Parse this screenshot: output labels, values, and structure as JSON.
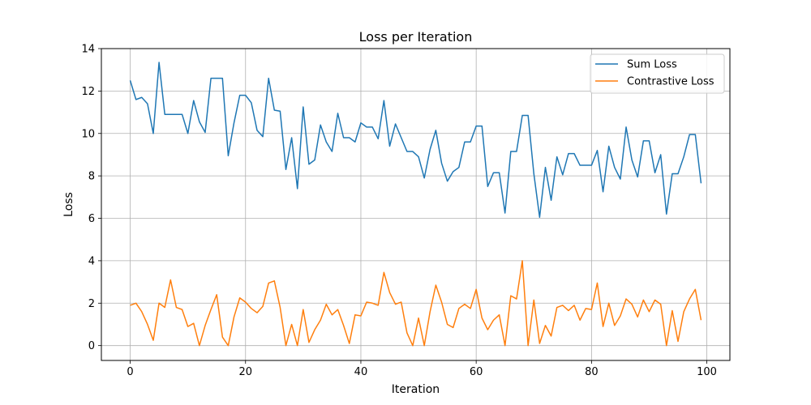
{
  "chart_data": {
    "type": "line",
    "title": "Loss per Iteration",
    "xlabel": "Iteration",
    "ylabel": "Loss",
    "xlim": [
      -5,
      104
    ],
    "ylim": [
      -0.7,
      14
    ],
    "xticks": [
      0,
      20,
      40,
      60,
      80,
      100
    ],
    "yticks": [
      0,
      2,
      4,
      6,
      8,
      10,
      12,
      14
    ],
    "grid": true,
    "legend_position": "top-right",
    "x": [
      0,
      1,
      2,
      3,
      4,
      5,
      6,
      7,
      8,
      9,
      10,
      11,
      12,
      13,
      14,
      15,
      16,
      17,
      18,
      19,
      20,
      21,
      22,
      23,
      24,
      25,
      26,
      27,
      28,
      29,
      30,
      31,
      32,
      33,
      34,
      35,
      36,
      37,
      38,
      39,
      40,
      41,
      42,
      43,
      44,
      45,
      46,
      47,
      48,
      49,
      50,
      51,
      52,
      53,
      54,
      55,
      56,
      57,
      58,
      59,
      60,
      61,
      62,
      63,
      64,
      65,
      66,
      67,
      68,
      69,
      70,
      71,
      72,
      73,
      74,
      75,
      76,
      77,
      78,
      79,
      80,
      81,
      82,
      83,
      84,
      85,
      86,
      87,
      88,
      89,
      90,
      91,
      92,
      93,
      94,
      95,
      96,
      97,
      98,
      99
    ],
    "series": [
      {
        "name": "Sum Loss",
        "color": "#1f77b4",
        "values": [
          12.5,
          11.6,
          11.7,
          11.4,
          10.0,
          13.35,
          10.9,
          10.9,
          10.9,
          10.9,
          10.0,
          11.55,
          10.55,
          10.05,
          12.6,
          12.6,
          12.6,
          8.95,
          10.5,
          11.8,
          11.8,
          11.45,
          10.15,
          9.85,
          12.6,
          11.1,
          11.05,
          8.3,
          9.8,
          7.4,
          11.25,
          8.55,
          8.75,
          10.4,
          9.6,
          9.15,
          10.95,
          9.8,
          9.8,
          9.6,
          10.5,
          10.3,
          10.3,
          9.75,
          11.55,
          9.4,
          10.45,
          9.8,
          9.15,
          9.15,
          8.9,
          7.9,
          9.25,
          10.15,
          8.6,
          7.75,
          8.2,
          8.4,
          9.6,
          9.6,
          10.35,
          10.35,
          7.5,
          8.15,
          8.15,
          6.25,
          9.15,
          9.15,
          10.85,
          10.85,
          8.1,
          6.05,
          8.4,
          6.85,
          8.9,
          8.05,
          9.05,
          9.05,
          8.5,
          8.5,
          8.5,
          9.2,
          7.25,
          9.4,
          8.4,
          7.85,
          10.3,
          8.75,
          7.95,
          9.65,
          9.65,
          8.15,
          9.0,
          6.2,
          8.1,
          8.1,
          8.9,
          9.95,
          9.95,
          7.65
        ]
      },
      {
        "name": "Contrastive Loss",
        "color": "#ff7f0e",
        "values": [
          1.9,
          2.0,
          1.6,
          1.0,
          0.25,
          2.0,
          1.8,
          3.1,
          1.8,
          1.7,
          0.9,
          1.05,
          0.0,
          0.95,
          1.7,
          2.4,
          0.4,
          0.0,
          1.35,
          2.25,
          2.05,
          1.75,
          1.55,
          1.85,
          2.95,
          3.05,
          1.8,
          0.0,
          1.0,
          0.0,
          1.7,
          0.15,
          0.75,
          1.2,
          1.95,
          1.45,
          1.7,
          0.95,
          0.1,
          1.45,
          1.4,
          2.05,
          2.0,
          1.9,
          3.45,
          2.5,
          1.95,
          2.05,
          0.6,
          0.0,
          1.3,
          0.0,
          1.6,
          2.85,
          2.05,
          1.0,
          0.85,
          1.75,
          1.95,
          1.75,
          2.65,
          1.3,
          0.75,
          1.2,
          1.45,
          0.0,
          2.35,
          2.2,
          4.0,
          0.0,
          2.15,
          0.1,
          0.95,
          0.45,
          1.8,
          1.9,
          1.65,
          1.9,
          1.2,
          1.75,
          1.7,
          2.95,
          0.9,
          2.0,
          0.95,
          1.4,
          2.2,
          1.95,
          1.35,
          2.15,
          1.6,
          2.15,
          1.95,
          0.0,
          1.65,
          0.2,
          1.6,
          2.2,
          2.65,
          1.2
        ]
      }
    ]
  }
}
